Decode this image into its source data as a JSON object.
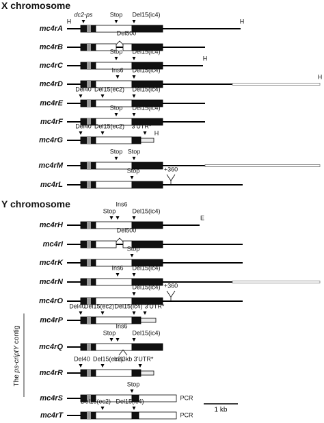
{
  "sections": [
    {
      "title": "X chromosome",
      "rows": [
        {
          "label": "mc4rA",
          "annotations": [
            "H",
            "dc2-ps",
            "Stop",
            "Del15(ic4)",
            "H"
          ]
        },
        {
          "label": "mc4rB",
          "annotations": [
            "Del500"
          ]
        },
        {
          "label": "mc4rC",
          "annotations": [
            "Stop",
            "Del15(ic4)",
            "H"
          ]
        },
        {
          "label": "mc4rD",
          "annotations": [
            "Ins6",
            "Del15(ic4)",
            "H"
          ]
        },
        {
          "label": "mc4rE",
          "annotations": [
            "Del40",
            "Del15(ec2)",
            "Del15(ic4)"
          ]
        },
        {
          "label": "mc4rF",
          "annotations": [
            "Stop",
            "Del15(ic4)"
          ]
        },
        {
          "label": "mc4rG",
          "annotations": [
            "Del40",
            "Del15(ec2)",
            "3'UTR*",
            "H"
          ]
        },
        {
          "label": "mc4rM",
          "annotations": [
            "Stop",
            "Stop"
          ]
        },
        {
          "label": "mc4rL",
          "annotations": [
            "Stop",
            "+360"
          ]
        }
      ]
    },
    {
      "title": "Y chromosome",
      "rows": [
        {
          "label": "mc4rH",
          "annotations": [
            "Stop",
            "Ins6",
            "Del15(ic4)",
            "E"
          ]
        },
        {
          "label": "mc4rI",
          "annotations": [
            "Del500"
          ]
        },
        {
          "label": "mc4rK",
          "annotations": [
            "Stop"
          ]
        },
        {
          "label": "mc4rN",
          "annotations": [
            "Ins6",
            "Del15(ic4)"
          ]
        },
        {
          "label": "mc4rO",
          "annotations": [
            "Del15(ic4)",
            "+360"
          ]
        },
        {
          "label": "mc4rP",
          "annotations": [
            "Del40",
            "Del15(ec2)",
            "Del15(ic4)",
            "3'UTR*"
          ]
        },
        {
          "label": "mc4rQ",
          "annotations": [
            "Stop",
            "Ins6",
            "Del15(ic4)",
            "Ins3kb"
          ]
        },
        {
          "label": "mc4rR",
          "annotations": [
            "Del40",
            "Del15(ec2)",
            "3'UTR*"
          ]
        },
        {
          "label": "mc4rS",
          "annotations": [
            "Stop",
            "PCR"
          ]
        },
        {
          "label": "mc4rT",
          "annotations": [
            "Del15(ec2)",
            "Del15(ic4)",
            "PCR"
          ]
        }
      ]
    }
  ],
  "contig_label": [
    "The ",
    "ps-criptY",
    " contig"
  ],
  "scale_bar": "1 kb"
}
